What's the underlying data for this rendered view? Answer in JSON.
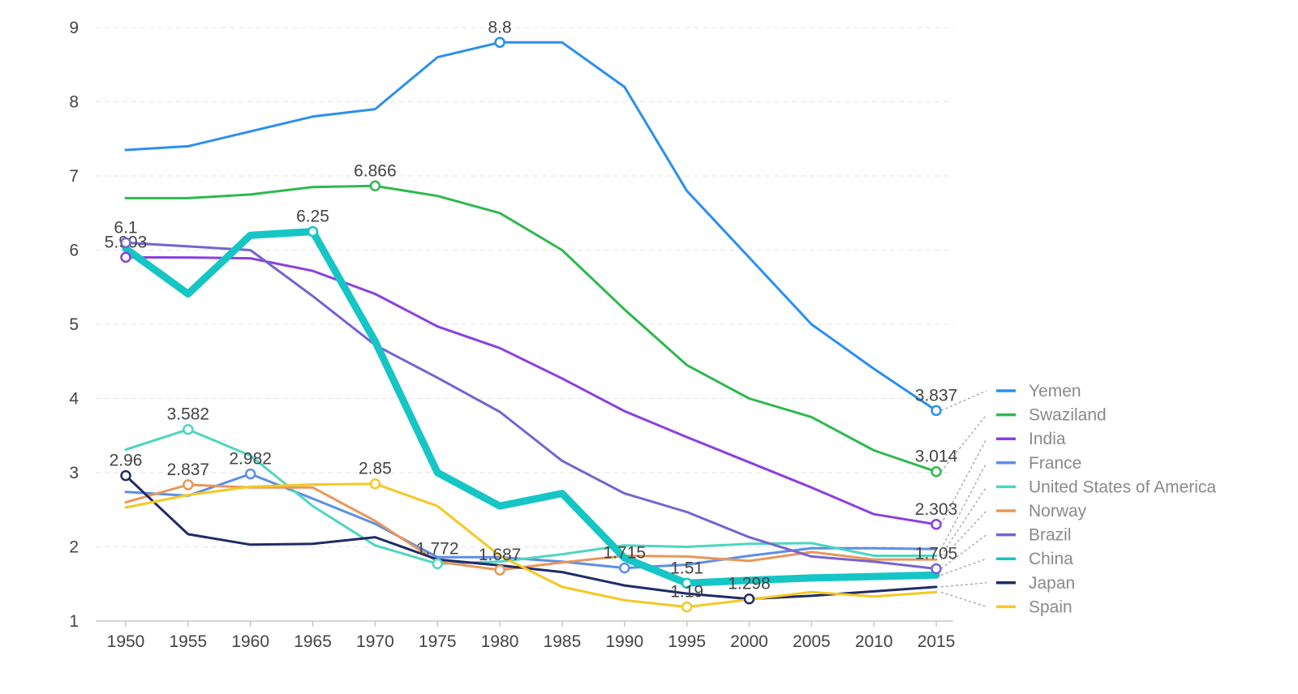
{
  "chart_data": {
    "type": "line",
    "title": "",
    "xlabel": "",
    "ylabel": "",
    "x": [
      1950,
      1955,
      1960,
      1965,
      1970,
      1975,
      1980,
      1985,
      1990,
      1995,
      2000,
      2005,
      2010,
      2015
    ],
    "x_ticks": [
      "1950",
      "1955",
      "1960",
      "1965",
      "1970",
      "1975",
      "1980",
      "1985",
      "1990",
      "1995",
      "2000",
      "2005",
      "2010",
      "2015"
    ],
    "y_ticks": [
      "1",
      "2",
      "3",
      "4",
      "5",
      "6",
      "7",
      "8",
      "9"
    ],
    "ylim": [
      1,
      9
    ],
    "grid": "horizontal dashed",
    "legend": "right",
    "series": [
      {
        "name": "Yemen",
        "color": "#2a8ff0",
        "width": 3,
        "values": [
          7.35,
          7.4,
          7.6,
          7.8,
          7.9,
          8.6,
          8.8,
          8.8,
          8.2,
          6.8,
          5.9,
          5.0,
          4.4,
          3.837
        ],
        "markers": [
          {
            "x": 1980,
            "label": "8.8"
          },
          {
            "x": 2015,
            "label": "3.837"
          }
        ]
      },
      {
        "name": "Swaziland",
        "color": "#2fb84e",
        "width": 3,
        "values": [
          6.7,
          6.7,
          6.75,
          6.85,
          6.866,
          6.73,
          6.5,
          6.0,
          5.2,
          4.45,
          4.0,
          3.75,
          3.3,
          3.014
        ],
        "markers": [
          {
            "x": 1970,
            "label": "6.866"
          },
          {
            "x": 2015,
            "label": "3.014"
          }
        ]
      },
      {
        "name": "India",
        "color": "#8b3fe0",
        "width": 3,
        "values": [
          5.903,
          5.9,
          5.89,
          5.72,
          5.41,
          4.97,
          4.68,
          4.27,
          3.83,
          3.48,
          3.14,
          2.8,
          2.44,
          2.303
        ],
        "markers": [
          {
            "x": 1950,
            "label": "5.903"
          },
          {
            "x": 2015,
            "label": "2.303"
          }
        ]
      },
      {
        "name": "France",
        "color": "#5d8ee6",
        "width": 3,
        "values": [
          2.74,
          2.69,
          2.982,
          2.65,
          2.31,
          1.86,
          1.86,
          1.8,
          1.715,
          1.76,
          1.88,
          1.98,
          1.98,
          1.97
        ],
        "markers": [
          {
            "x": 1960,
            "label": "2.982"
          },
          {
            "x": 1990,
            "label": "1.715"
          }
        ]
      },
      {
        "name": "United States of America",
        "color": "#4dd6c0",
        "width": 3,
        "values": [
          3.31,
          3.582,
          3.23,
          2.55,
          2.02,
          1.772,
          1.8,
          1.9,
          2.02,
          2.0,
          2.04,
          2.05,
          1.88,
          1.88
        ],
        "markers": [
          {
            "x": 1955,
            "label": "3.582"
          },
          {
            "x": 1975,
            "label": "1.772"
          }
        ]
      },
      {
        "name": "Norway",
        "color": "#e8975a",
        "width": 3,
        "values": [
          2.6,
          2.837,
          2.8,
          2.8,
          2.35,
          1.8,
          1.687,
          1.79,
          1.88,
          1.87,
          1.81,
          1.93,
          1.83,
          1.83
        ],
        "markers": [
          {
            "x": 1955,
            "label": "2.837"
          },
          {
            "x": 1980,
            "label": "1.687"
          }
        ]
      },
      {
        "name": "Brazil",
        "color": "#7763d0",
        "width": 3,
        "values": [
          6.1,
          6.05,
          6.0,
          5.38,
          4.72,
          4.28,
          3.82,
          3.16,
          2.72,
          2.47,
          2.13,
          1.87,
          1.8,
          1.705
        ],
        "markers": [
          {
            "x": 1950,
            "label": "6.1"
          },
          {
            "x": 2015,
            "label": "1.705"
          }
        ]
      },
      {
        "name": "China",
        "color": "#16c5c5",
        "width": 9,
        "values": [
          6.02,
          5.41,
          6.2,
          6.25,
          4.77,
          3.0,
          2.55,
          2.72,
          1.85,
          1.51,
          1.55,
          1.58,
          1.6,
          1.62
        ],
        "markers": [
          {
            "x": 1965,
            "label": "6.25"
          },
          {
            "x": 1995,
            "label": "1.51"
          }
        ]
      },
      {
        "name": "Japan",
        "color": "#1f2b66",
        "width": 3,
        "values": [
          2.96,
          2.17,
          2.03,
          2.04,
          2.13,
          1.83,
          1.75,
          1.66,
          1.48,
          1.37,
          1.298,
          1.34,
          1.4,
          1.46
        ],
        "markers": [
          {
            "x": 1950,
            "label": "2.96"
          },
          {
            "x": 2000,
            "label": "1.298"
          }
        ]
      },
      {
        "name": "Spain",
        "color": "#f5c823",
        "width": 3,
        "values": [
          2.53,
          2.7,
          2.81,
          2.84,
          2.85,
          2.55,
          1.88,
          1.46,
          1.28,
          1.19,
          1.29,
          1.39,
          1.33,
          1.39
        ],
        "markers": [
          {
            "x": 1970,
            "label": "2.85"
          },
          {
            "x": 1995,
            "label": "1.19"
          }
        ]
      }
    ]
  }
}
